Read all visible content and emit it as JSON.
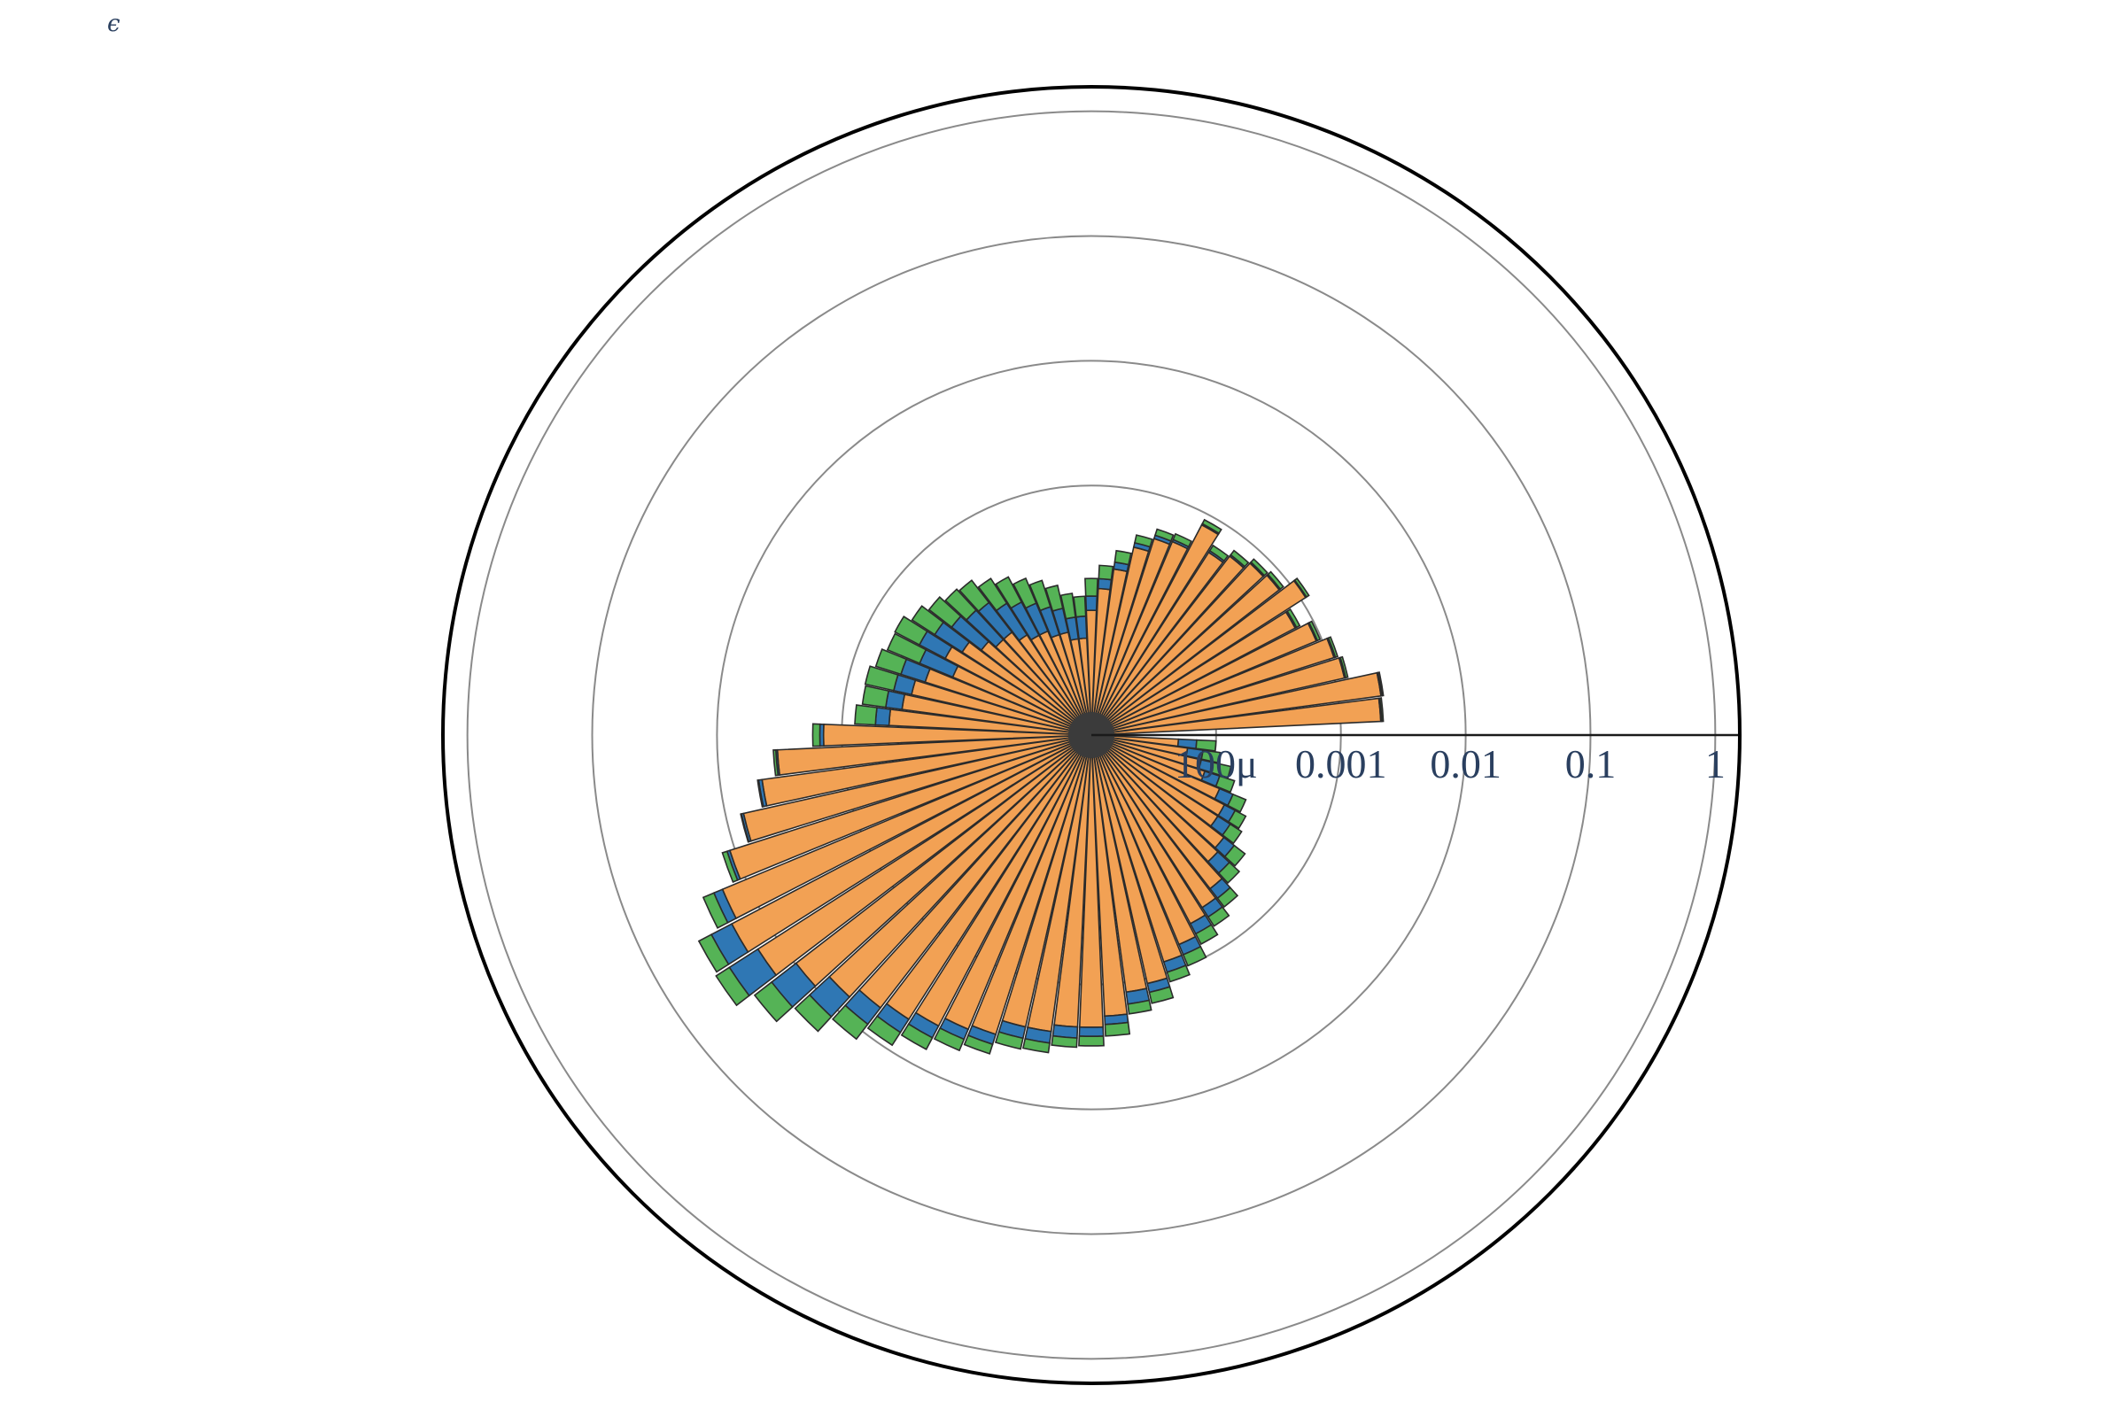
{
  "chart_data": {
    "type": "barpolar",
    "title": "ϵ",
    "radial_axis": {
      "type": "log",
      "range": [
        1e-05,
        1.25
      ],
      "tick_values": [
        0.0001,
        0.001,
        0.01,
        0.1,
        1
      ],
      "tick_labels": [
        "100μ",
        "0.001",
        "0.01",
        "0.1",
        "1"
      ],
      "angle_deg": 0
    },
    "bin_width_deg": 5,
    "theta_deg": [
      5,
      10,
      15,
      20,
      25,
      30,
      35,
      40,
      45,
      50,
      55,
      60,
      65,
      70,
      75,
      80,
      85,
      90,
      95,
      100,
      105,
      110,
      115,
      120,
      125,
      130,
      135,
      140,
      145,
      150,
      155,
      160,
      165,
      170,
      175,
      180,
      185,
      190,
      195,
      200,
      205,
      210,
      215,
      220,
      225,
      230,
      235,
      240,
      245,
      250,
      255,
      260,
      265,
      270,
      275,
      280,
      285,
      290,
      295,
      300,
      305,
      310,
      315,
      320,
      325,
      330,
      335,
      340,
      345,
      350,
      355
    ],
    "series": [
      {
        "color": "#f2a154",
        "values": [
          0.0021,
          0.0022,
          0.0012,
          0.0011,
          0.0009,
          0.0007,
          0.0011,
          0.0008,
          0.00075,
          0.00065,
          0.00055,
          0.0008,
          0.00048,
          0.00045,
          0.00035,
          0.00022,
          0.00015,
          0.0001,
          6e-05,
          6e-05,
          7e-05,
          7e-05,
          8e-05,
          8e-05,
          9e-05,
          0.00011,
          0.00011,
          0.00013,
          0.00017,
          0.00021,
          0.00016,
          0.00025,
          0.0003,
          0.00034,
          0.00042,
          0.0014,
          0.0033,
          0.0046,
          0.0072,
          0.011,
          0.016,
          0.018,
          0.015,
          0.0098,
          0.0072,
          0.0058,
          0.0051,
          0.0043,
          0.0036,
          0.0033,
          0.0025,
          0.0025,
          0.0022,
          0.0022,
          0.0018,
          0.0012,
          0.0011,
          0.00081,
          0.00066,
          0.00051,
          0.00044,
          0.00036,
          0.00024,
          0.00022,
          0.00016,
          0.00016,
          0.00013,
          9e-05,
          8e-05,
          6e-05,
          5e-05
        ]
      },
      {
        "color": "#2f77b4",
        "values": [
          4e-05,
          4e-05,
          3e-05,
          3e-05,
          2e-05,
          2e-05,
          2e-05,
          2e-05,
          2e-05,
          2e-05,
          2e-05,
          2e-05,
          2e-05,
          3e-05,
          3e-05,
          3e-05,
          3e-05,
          3e-05,
          3e-05,
          3e-05,
          4e-05,
          5e-05,
          6e-05,
          8e-05,
          9e-05,
          0.00011,
          0.00012,
          0.00013,
          0.00014,
          0.00015,
          0.00015,
          0.00015,
          0.00012,
          0.00012,
          0.00012,
          0.0001,
          0.0001,
          0.0003,
          0.0003,
          0.0006,
          0.003,
          0.0095,
          0.013,
          0.0075,
          0.0046,
          0.0027,
          0.0017,
          0.0012,
          0.0008,
          0.0007,
          0.0006,
          0.0006,
          0.0005,
          0.0004,
          0.0003,
          0.0003,
          0.0002,
          0.00018,
          0.00015,
          0.00012,
          0.0001,
          9e-05,
          8e-05,
          6e-05,
          5e-05,
          4e-05,
          4e-05,
          3e-05,
          2e-05,
          2e-05,
          2e-05
        ]
      },
      {
        "color": "#55b356",
        "values": [
          6e-05,
          6e-05,
          5e-05,
          5e-05,
          5e-05,
          5e-05,
          6e-05,
          6e-05,
          6e-05,
          7e-05,
          7e-05,
          7e-05,
          6e-05,
          6e-05,
          6e-05,
          6e-05,
          5e-05,
          5e-05,
          4e-05,
          5e-05,
          6e-05,
          8e-05,
          9e-05,
          0.00011,
          0.00013,
          0.00015,
          0.00016,
          0.00018,
          0.0002,
          0.00024,
          0.00028,
          0.00025,
          0.0003,
          0.00025,
          0.00025,
          0.00021,
          0.00016,
          0.0001,
          0.0001,
          0.0011,
          0.0045,
          0.0082,
          0.0095,
          0.0084,
          0.0052,
          0.0035,
          0.0022,
          0.0015,
          0.0011,
          0.0008,
          0.0007,
          0.0006,
          0.0005,
          0.0005,
          0.0005,
          0.0003,
          0.0003,
          0.0002,
          0.0002,
          0.00015,
          0.00012,
          0.0001,
          9e-05,
          8e-05,
          6e-05,
          5e-05,
          5e-05,
          4e-05,
          4e-05,
          3e-05,
          3e-05
        ]
      }
    ]
  }
}
